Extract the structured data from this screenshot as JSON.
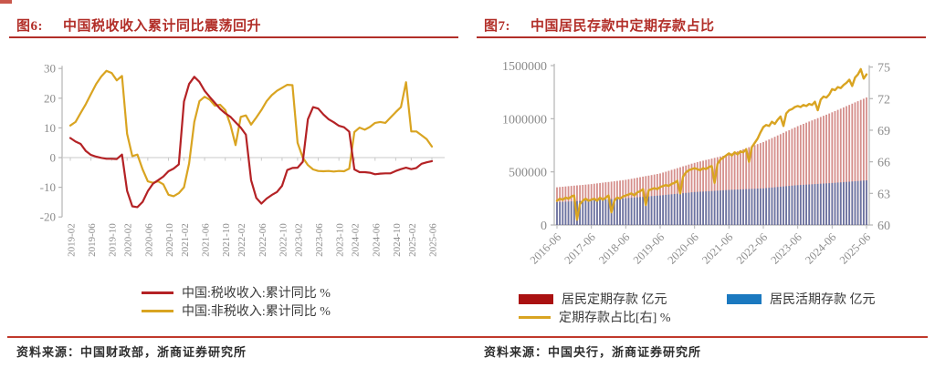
{
  "page": {
    "accent_red": "#c0392b",
    "title_red": "#b22e28",
    "axis_gray": "#b5b5b5",
    "label_gray": "#8c8c8c"
  },
  "fig6": {
    "title_prefix": "图6:",
    "title": "中国税收收入累计同比震荡回升",
    "source_prefix": "资料来源：",
    "source": "中国财政部，浙商证券研究所",
    "chart_data": {
      "type": "line",
      "x": [
        "2019-02",
        "2019-03",
        "2019-04",
        "2019-05",
        "2019-06",
        "2019-07",
        "2019-08",
        "2019-09",
        "2019-10",
        "2019-11",
        "2019-12",
        "2020-02",
        "2020-03",
        "2020-04",
        "2020-05",
        "2020-06",
        "2020-07",
        "2020-08",
        "2020-09",
        "2020-10",
        "2020-11",
        "2020-12",
        "2021-02",
        "2021-03",
        "2021-04",
        "2021-05",
        "2021-06",
        "2021-07",
        "2021-08",
        "2021-09",
        "2021-10",
        "2021-11",
        "2021-12",
        "2022-02",
        "2022-03",
        "2022-04",
        "2022-05",
        "2022-06",
        "2022-07",
        "2022-08",
        "2022-09",
        "2022-10",
        "2022-11",
        "2022-12",
        "2023-02",
        "2023-03",
        "2023-04",
        "2023-05",
        "2023-06",
        "2023-07",
        "2023-08",
        "2023-09",
        "2023-10",
        "2023-11",
        "2023-12",
        "2024-02",
        "2024-03",
        "2024-04",
        "2024-05",
        "2024-06",
        "2024-07",
        "2024-08",
        "2024-09",
        "2024-10",
        "2024-11",
        "2024-12",
        "2025-02",
        "2025-03",
        "2025-04",
        "2025-05",
        "2025-06"
      ],
      "series": [
        {
          "name": "中国:税收收入:累计同比 %",
          "color": "#b42225",
          "values": [
            6.6,
            5.4,
            4.6,
            2.2,
            0.9,
            0.3,
            -0.1,
            -0.4,
            -0.4,
            -0.5,
            1.0,
            -11.2,
            -16.4,
            -16.7,
            -14.9,
            -11.3,
            -8.8,
            -7.6,
            -6.4,
            -4.6,
            -3.7,
            -2.3,
            18.9,
            24.8,
            27.2,
            25.5,
            22.5,
            20.4,
            18.4,
            16.4,
            14.9,
            13.7,
            11.9,
            10.1,
            7.7,
            -7.6,
            -13.6,
            -15.5,
            -13.8,
            -12.6,
            -11.6,
            -9.5,
            -4.2,
            -3.5,
            -3.4,
            -1.4,
            12.9,
            17.0,
            16.5,
            14.5,
            12.9,
            11.9,
            10.7,
            10.2,
            8.7,
            -4.0,
            -4.9,
            -4.9,
            -5.1,
            -5.6,
            -5.4,
            -5.3,
            -5.3,
            -4.5,
            -3.9,
            -3.4,
            -3.9,
            -3.5,
            -2.1,
            -1.6,
            -1.2
          ]
        },
        {
          "name": "中国:非税收入:累计同比 %",
          "color": "#d9a421",
          "values": [
            10.8,
            12.0,
            15.0,
            18.0,
            21.4,
            24.8,
            27.3,
            29.2,
            28.5,
            26.0,
            27.5,
            8.0,
            0.5,
            1.0,
            -4.0,
            -8.0,
            -8.5,
            -8.0,
            -9.0,
            -12.5,
            -13.0,
            -12.0,
            -10.0,
            -2.0,
            12.0,
            19.0,
            20.5,
            19.5,
            17.5,
            17.8,
            16.0,
            11.0,
            4.2,
            13.7,
            14.2,
            11.1,
            13.5,
            16.0,
            19.0,
            21.0,
            22.5,
            23.5,
            24.5,
            24.4,
            5.0,
            0.0,
            -2.5,
            -4.0,
            -4.5,
            -4.6,
            -4.5,
            -4.7,
            -4.5,
            -4.6,
            -3.7,
            8.6,
            10.1,
            9.4,
            10.3,
            11.7,
            12.0,
            11.7,
            13.5,
            15.3,
            17.0,
            25.4,
            8.8,
            8.8,
            7.5,
            6.2,
            3.7
          ]
        }
      ],
      "ylim": [
        -20,
        30
      ],
      "yticks": [
        30,
        20,
        10,
        0,
        -10,
        -20
      ],
      "xtick_labels": [
        "2019-02",
        "2019-06",
        "2019-10",
        "2020-02",
        "2020-06",
        "2020-10",
        "2021-02",
        "2021-06",
        "2021-10",
        "2022-02",
        "2022-06",
        "2022-10",
        "2023-02",
        "2023-06",
        "2023-10",
        "2024-02",
        "2024-06",
        "2024-10",
        "2025-02",
        "2025-06"
      ],
      "grid": false,
      "legend_position": "bottom"
    }
  },
  "fig7": {
    "title_prefix": "图7:",
    "title": "中国居民存款中定期存款占比",
    "source_prefix": "资料来源：",
    "source": "中国央行，浙商证券研究所",
    "chart_data": {
      "type": "bar+line",
      "x_start": "2016-06",
      "x_end": "2025-06",
      "xtick_labels": [
        "2016-06",
        "2017-06",
        "2018-06",
        "2019-06",
        "2020-06",
        "2021-06",
        "2022-06",
        "2023-06",
        "2024-06",
        "2025-06"
      ],
      "xtick_every": 12,
      "bar_series": [
        {
          "name": "居民定期存款 亿元",
          "legend_color": "#aa1111",
          "bar_color": "#bc4a45",
          "opacity": 0.62,
          "values": [
            355000,
            357500,
            360000,
            362500,
            365000,
            367500,
            370000,
            372500,
            375000,
            377500,
            380000,
            382500,
            385000,
            388300,
            391700,
            395000,
            398300,
            401700,
            405000,
            408300,
            411700,
            415000,
            418300,
            421700,
            425000,
            430000,
            435000,
            440000,
            445000,
            450000,
            455000,
            460000,
            465000,
            470000,
            475000,
            480000,
            485000,
            493300,
            501700,
            510000,
            518300,
            526700,
            535000,
            543300,
            551700,
            560000,
            568300,
            576700,
            585000,
            591700,
            598300,
            605000,
            611700,
            618300,
            625000,
            631700,
            638300,
            645000,
            651700,
            658300,
            665000,
            674600,
            684200,
            693800,
            703300,
            712900,
            722500,
            732100,
            741700,
            751300,
            760800,
            770400,
            780000,
            792500,
            805000,
            817500,
            830000,
            842500,
            855000,
            867500,
            880000,
            892500,
            905000,
            917500,
            930000,
            940800,
            951700,
            962500,
            973300,
            984200,
            995000,
            1005800,
            1016700,
            1027500,
            1038300,
            1049200,
            1060000,
            1071700,
            1083300,
            1095000,
            1106700,
            1118300,
            1130000,
            1141700,
            1153300,
            1165000,
            1176700,
            1188300,
            1200000
          ]
        },
        {
          "name": "居民活期存款 亿元",
          "legend_color": "#1b79c0",
          "bar_color": "#4f6ca8",
          "opacity": 0.8,
          "values": [
            215000,
            216400,
            217800,
            219300,
            220700,
            222100,
            223500,
            224900,
            226300,
            227800,
            229200,
            230600,
            232000,
            233700,
            235300,
            237000,
            238700,
            240300,
            242000,
            243700,
            245300,
            247000,
            248700,
            250300,
            252000,
            254200,
            256300,
            258500,
            260700,
            262800,
            265000,
            267200,
            269300,
            271500,
            273700,
            275800,
            278000,
            280700,
            283300,
            286000,
            288700,
            291300,
            294000,
            296700,
            299300,
            302000,
            304700,
            307300,
            310000,
            311700,
            313300,
            315000,
            316700,
            318300,
            320000,
            321700,
            323300,
            325000,
            326700,
            328300,
            330000,
            331300,
            332500,
            333800,
            335000,
            336300,
            337500,
            338800,
            340000,
            341300,
            342500,
            343800,
            345000,
            347500,
            350000,
            352500,
            355000,
            357500,
            360000,
            362500,
            365000,
            367500,
            370000,
            372500,
            375000,
            376700,
            378300,
            380000,
            381700,
            383300,
            385000,
            386700,
            388300,
            390000,
            391700,
            393300,
            395000,
            397100,
            399200,
            401300,
            403300,
            405400,
            407500,
            409600,
            411700,
            413800,
            415800,
            417900,
            420000
          ]
        }
      ],
      "line_series": {
        "name": "定期存款占比[右] %",
        "color": "#d9a421",
        "axis": "right",
        "values": [
          62.3,
          62.5,
          62.4,
          62.6,
          62.5,
          62.7,
          62.8,
          60.5,
          62.0,
          62.3,
          62.5,
          62.3,
          62.4,
          62.5,
          62.3,
          62.6,
          62.4,
          62.6,
          62.8,
          61.2,
          62.3,
          62.6,
          62.5,
          62.7,
          62.8,
          62.9,
          63.0,
          62.8,
          63.1,
          63.2,
          63.4,
          61.9,
          63.3,
          63.4,
          63.5,
          63.4,
          63.6,
          63.7,
          63.8,
          63.7,
          63.9,
          64.0,
          64.2,
          63.0,
          64.6,
          65.0,
          65.2,
          65.3,
          65.4,
          65.3,
          65.2,
          65.4,
          65.3,
          65.5,
          65.6,
          64.0,
          65.8,
          66.2,
          66.4,
          66.6,
          66.8,
          66.6,
          66.9,
          66.7,
          67.0,
          66.9,
          67.2,
          66.0,
          67.4,
          67.8,
          68.2,
          68.8,
          69.3,
          69.5,
          69.4,
          69.8,
          69.6,
          70.0,
          70.3,
          69.4,
          70.6,
          70.9,
          71.0,
          71.2,
          71.3,
          71.2,
          71.4,
          71.3,
          71.5,
          71.4,
          71.7,
          70.9,
          71.9,
          72.2,
          72.1,
          72.4,
          72.9,
          72.8,
          73.1,
          73.0,
          73.3,
          73.5,
          73.8,
          73.2,
          74.0,
          74.3,
          74.8,
          73.9,
          74.3
        ]
      },
      "ylim_left": [
        0,
        1500000
      ],
      "yticks_left": [
        0,
        500000,
        1000000,
        1500000
      ],
      "ylim_right": [
        60,
        75
      ],
      "yticks_right": [
        60,
        63,
        66,
        69,
        72,
        75
      ],
      "grid": false,
      "legend_position": "bottom"
    }
  }
}
